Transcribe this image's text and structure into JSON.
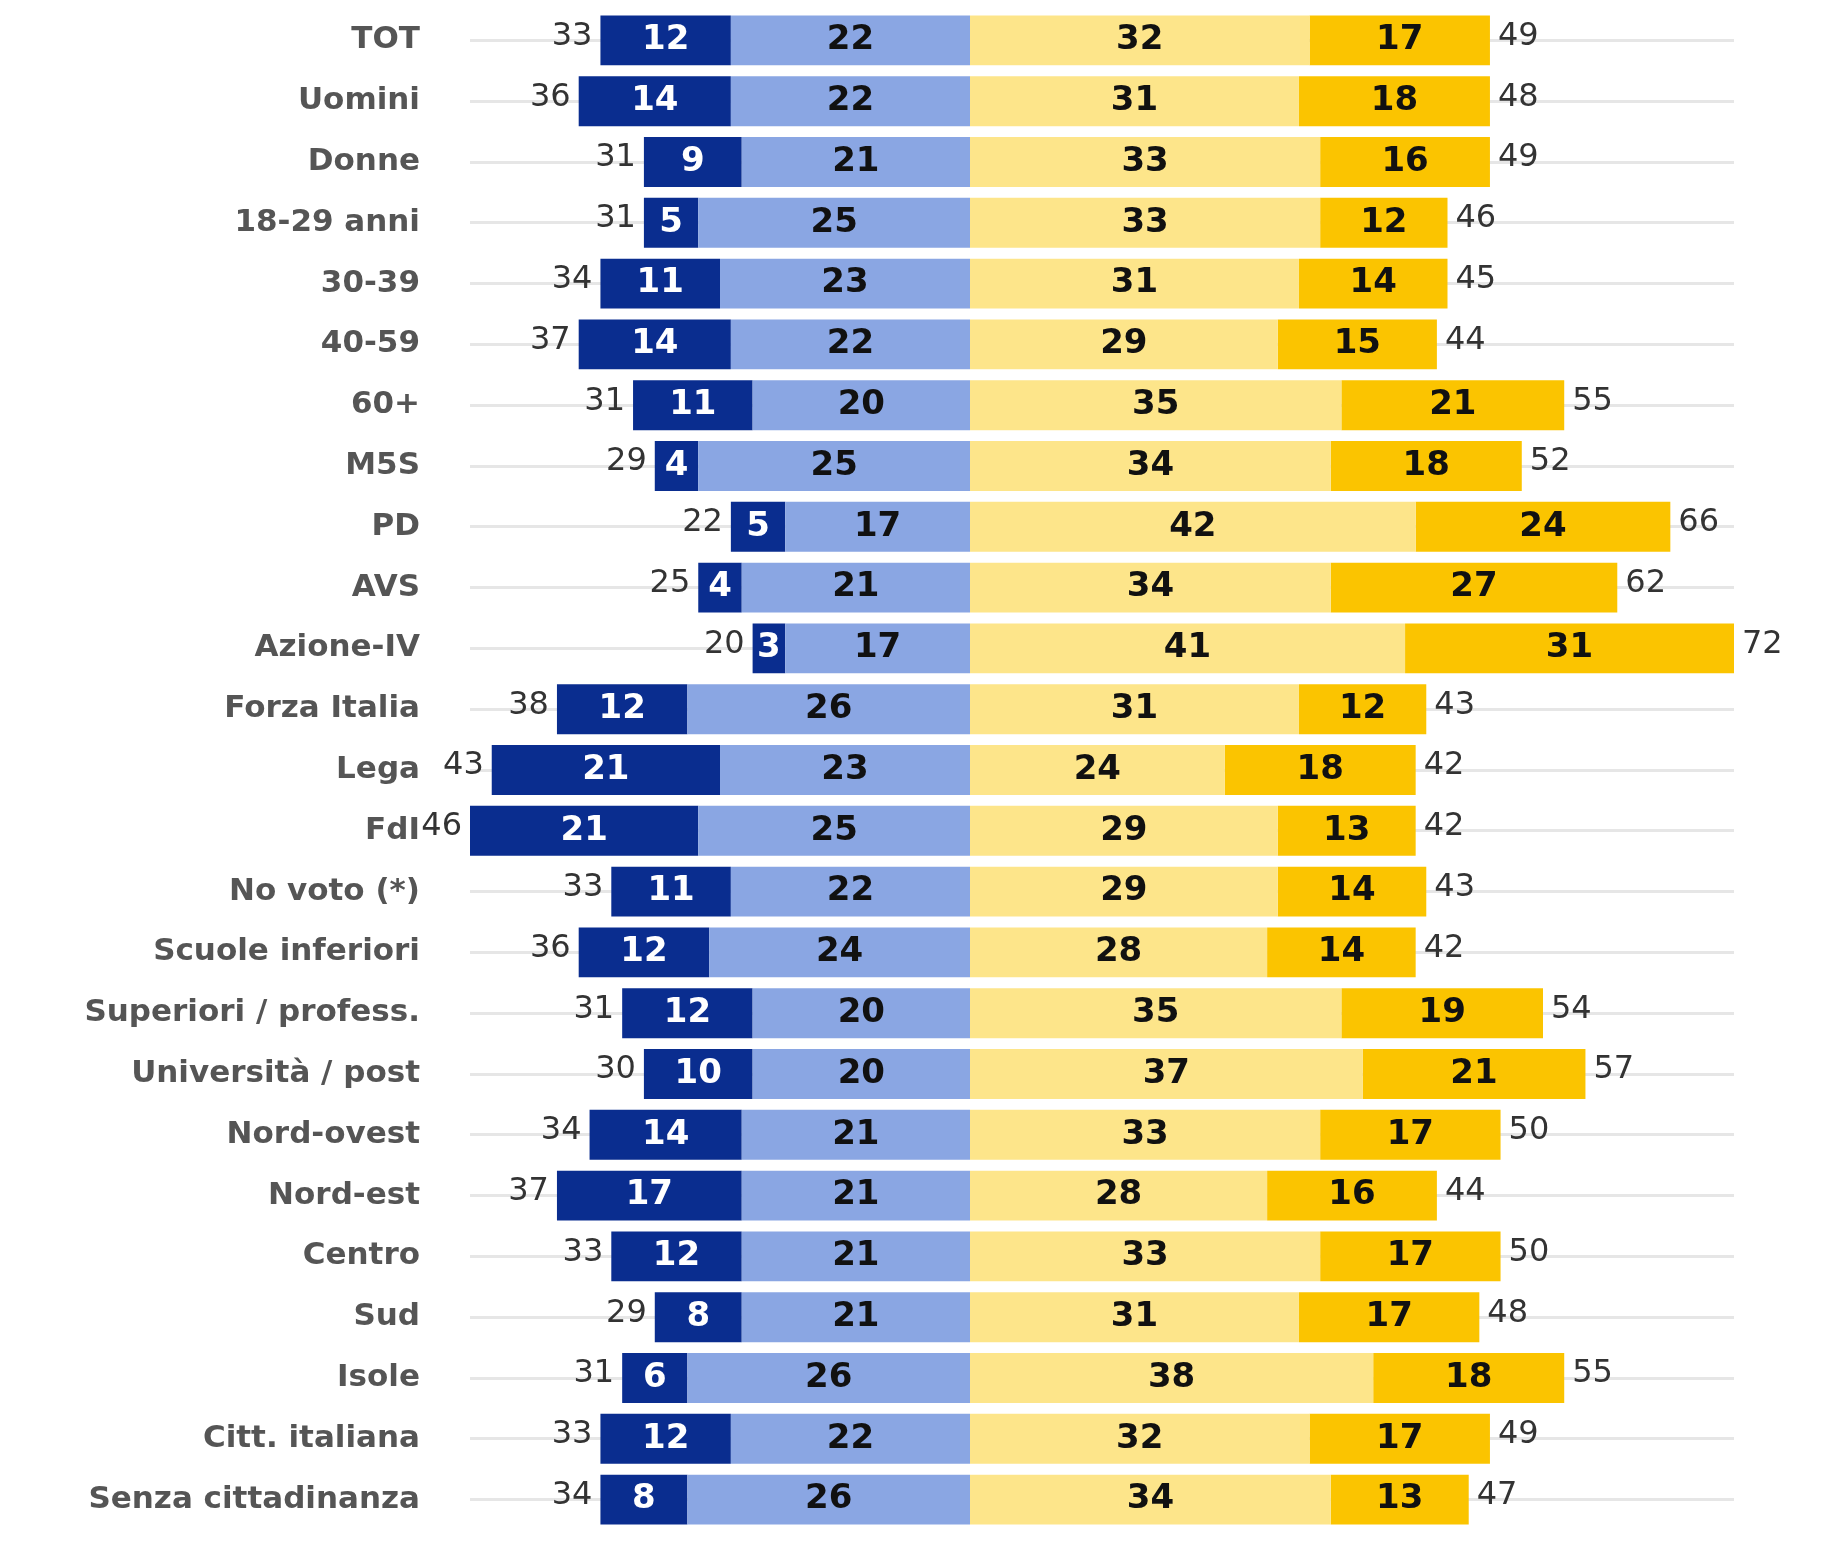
{
  "chart_data": [
    {
      "type": "bar",
      "orientation": "horizontal",
      "stacked": true,
      "legend": false,
      "grid": "y",
      "tick_labels": "y",
      "data_labels": true,
      "xlim": [
        46,
        0
      ],
      "categories": [
        "TOT",
        "Uomini",
        "Donne",
        "18-29 anni",
        "30-39",
        "40-59",
        "60+",
        "M5S",
        "PD",
        "AVS",
        "Azione-IV",
        "Forza Italia",
        "Lega",
        "FdI",
        "No voto (*)",
        "Scuole inferiori",
        "Superiori / profess.",
        "Università / post",
        "Nord-ovest",
        "Nord-est",
        "Centro",
        "Sud",
        "Isole",
        "Citt. italiana",
        "Senza cittadinanza"
      ],
      "series": [
        {
          "color": "#8aa6e3",
          "values": [
            22,
            22,
            21,
            25,
            23,
            22,
            20,
            25,
            17,
            21,
            17,
            26,
            23,
            25,
            22,
            24,
            20,
            20,
            21,
            21,
            21,
            21,
            26,
            22,
            26
          ]
        },
        {
          "color": "#0a2d8f",
          "values": [
            12,
            14,
            9,
            5,
            11,
            14,
            11,
            4,
            5,
            4,
            3,
            12,
            21,
            21,
            11,
            12,
            12,
            10,
            14,
            17,
            12,
            8,
            6,
            12,
            8
          ]
        }
      ],
      "totals": [
        "33",
        "36",
        "31",
        "31",
        "34",
        "37",
        "31",
        "29",
        "22",
        "25",
        "20",
        "38",
        "43",
        "46",
        "33",
        "36",
        "31",
        "30",
        "34",
        "37",
        "33",
        "29",
        "31",
        "33",
        "34"
      ]
    },
    {
      "type": "bar",
      "orientation": "horizontal",
      "stacked": true,
      "legend": false,
      "grid": "y",
      "tick_labels": false,
      "data_labels": true,
      "xlim": [
        0,
        72
      ],
      "categories": [
        null,
        null,
        null,
        null,
        null,
        null,
        null,
        null,
        null,
        null,
        null,
        null,
        null,
        null,
        null,
        null,
        null,
        null,
        null,
        null,
        null,
        null,
        null,
        null,
        null
      ],
      "series": [
        {
          "color": "#fde58a",
          "values": [
            32,
            31,
            33,
            33,
            31,
            29,
            35,
            34,
            42,
            34,
            41,
            31,
            24,
            29,
            29,
            28,
            35,
            37,
            33,
            28,
            33,
            31,
            38,
            32,
            34
          ]
        },
        {
          "color": "#fbc400",
          "values": [
            17,
            18,
            16,
            12,
            14,
            15,
            21,
            18,
            24,
            27,
            31,
            12,
            18,
            13,
            14,
            14,
            19,
            21,
            17,
            16,
            17,
            17,
            18,
            17,
            13
          ]
        }
      ],
      "totals": [
        "49",
        "48",
        "49",
        "46",
        "45",
        "44",
        "55",
        "52",
        "66",
        "62",
        "72",
        "43",
        "42",
        "42",
        "43",
        "42",
        "54",
        "57",
        "50",
        "44",
        "50",
        "48",
        "55",
        "49",
        "47"
      ]
    }
  ]
}
